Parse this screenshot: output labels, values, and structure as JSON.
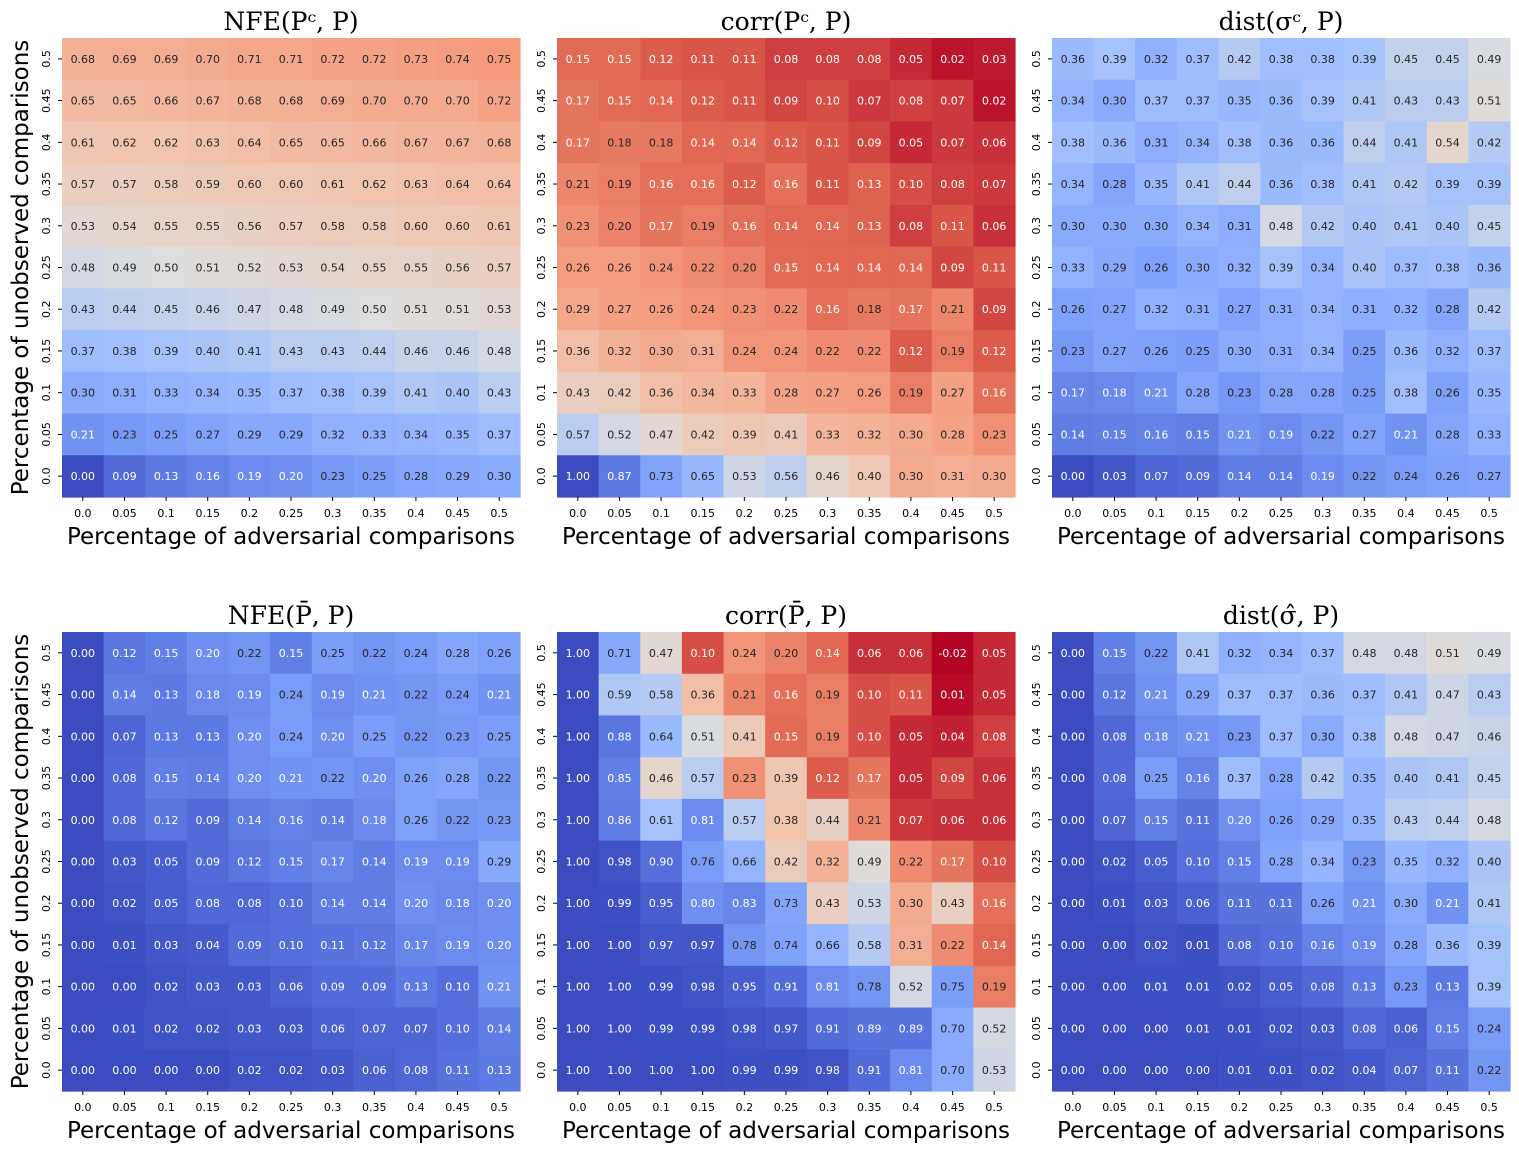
{
  "chart_data": [
    {
      "type": "heatmap",
      "title": "NFE(Pᶜ, P)",
      "xlabel": "Percentage of adversarial comparisons",
      "ylabel": "Percentage of unobserved comparisons",
      "x_ticks": [
        "0.0",
        "0.05",
        "0.1",
        "0.15",
        "0.2",
        "0.25",
        "0.3",
        "0.35",
        "0.4",
        "0.45",
        "0.5"
      ],
      "y_ticks": [
        "0.5",
        "0.45",
        "0.4",
        "0.35",
        "0.3",
        "0.25",
        "0.2",
        "0.15",
        "0.1",
        "0.05",
        "0.0"
      ],
      "value_labels": [
        [
          "0.68",
          "0.69",
          "0.69",
          "0.70",
          "0.71",
          "0.71",
          "0.72",
          "0.72",
          "0.73",
          "0.74",
          "0.75"
        ],
        [
          "0.65",
          "0.65",
          "0.66",
          "0.67",
          "0.68",
          "0.68",
          "0.69",
          "0.70",
          "0.70",
          "0.70",
          "0.72"
        ],
        [
          "0.61",
          "0.62",
          "0.62",
          "0.63",
          "0.64",
          "0.65",
          "0.65",
          "0.66",
          "0.67",
          "0.67",
          "0.68"
        ],
        [
          "0.57",
          "0.57",
          "0.58",
          "0.59",
          "0.60",
          "0.60",
          "0.61",
          "0.62",
          "0.63",
          "0.64",
          "0.64"
        ],
        [
          "0.53",
          "0.54",
          "0.55",
          "0.55",
          "0.56",
          "0.57",
          "0.58",
          "0.58",
          "0.60",
          "0.60",
          "0.61"
        ],
        [
          "0.48",
          "0.49",
          "0.50",
          "0.51",
          "0.52",
          "0.53",
          "0.54",
          "0.55",
          "0.55",
          "0.56",
          "0.57"
        ],
        [
          "0.43",
          "0.44",
          "0.45",
          "0.46",
          "0.47",
          "0.48",
          "0.49",
          "0.50",
          "0.51",
          "0.51",
          "0.53"
        ],
        [
          "0.37",
          "0.38",
          "0.39",
          "0.40",
          "0.41",
          "0.43",
          "0.43",
          "0.44",
          "0.46",
          "0.46",
          "0.48"
        ],
        [
          "0.30",
          "0.31",
          "0.33",
          "0.34",
          "0.35",
          "0.37",
          "0.38",
          "0.39",
          "0.41",
          "0.40",
          "0.43"
        ],
        [
          "0.21",
          "0.23",
          "0.25",
          "0.27",
          "0.29",
          "0.29",
          "0.32",
          "0.33",
          "0.34",
          "0.35",
          "0.37"
        ],
        [
          "0.00",
          "0.09",
          "0.13",
          "0.16",
          "0.19",
          "0.20",
          "0.23",
          "0.25",
          "0.28",
          "0.29",
          "0.30"
        ]
      ],
      "color_range": [
        0.0,
        1.0
      ],
      "colormap": "coolwarm"
    },
    {
      "type": "heatmap",
      "title": "corr(Pᶜ, P)",
      "xlabel": "Percentage of adversarial comparisons",
      "ylabel": "",
      "x_ticks": [
        "0.0",
        "0.05",
        "0.1",
        "0.15",
        "0.2",
        "0.25",
        "0.3",
        "0.35",
        "0.4",
        "0.45",
        "0.5"
      ],
      "y_ticks": [
        "0.5",
        "0.45",
        "0.4",
        "0.35",
        "0.3",
        "0.25",
        "0.2",
        "0.15",
        "0.1",
        "0.05",
        "0.0"
      ],
      "value_labels": [
        [
          "0.15",
          "0.15",
          "0.12",
          "0.11",
          "0.11",
          "0.08",
          "0.08",
          "0.08",
          "0.05",
          "0.02",
          "0.03"
        ],
        [
          "0.17",
          "0.15",
          "0.14",
          "0.12",
          "0.11",
          "0.09",
          "0.10",
          "0.07",
          "0.08",
          "0.07",
          "0.02"
        ],
        [
          "0.17",
          "0.18",
          "0.18",
          "0.14",
          "0.14",
          "0.12",
          "0.11",
          "0.09",
          "0.05",
          "0.07",
          "0.06"
        ],
        [
          "0.21",
          "0.19",
          "0.16",
          "0.16",
          "0.12",
          "0.16",
          "0.11",
          "0.13",
          "0.10",
          "0.08",
          "0.07"
        ],
        [
          "0.23",
          "0.20",
          "0.17",
          "0.19",
          "0.16",
          "0.14",
          "0.14",
          "0.13",
          "0.08",
          "0.11",
          "0.06"
        ],
        [
          "0.26",
          "0.26",
          "0.24",
          "0.22",
          "0.20",
          "0.15",
          "0.14",
          "0.14",
          "0.14",
          "0.09",
          "0.11"
        ],
        [
          "0.29",
          "0.27",
          "0.26",
          "0.24",
          "0.23",
          "0.22",
          "0.16",
          "0.18",
          "0.17",
          "0.21",
          "0.09"
        ],
        [
          "0.36",
          "0.32",
          "0.30",
          "0.31",
          "0.24",
          "0.24",
          "0.22",
          "0.22",
          "0.12",
          "0.19",
          "0.12"
        ],
        [
          "0.43",
          "0.42",
          "0.36",
          "0.34",
          "0.33",
          "0.28",
          "0.27",
          "0.26",
          "0.19",
          "0.27",
          "0.16"
        ],
        [
          "0.57",
          "0.52",
          "0.47",
          "0.42",
          "0.39",
          "0.41",
          "0.33",
          "0.32",
          "0.30",
          "0.28",
          "0.23"
        ],
        [
          "1.00",
          "0.87",
          "0.73",
          "0.65",
          "0.53",
          "0.56",
          "0.46",
          "0.40",
          "0.30",
          "0.31",
          "0.30"
        ]
      ],
      "color_range": [
        1.0,
        0.0
      ],
      "colormap": "coolwarm_reversed"
    },
    {
      "type": "heatmap",
      "title": "dist(σᶜ, P)",
      "xlabel": "Percentage of adversarial comparisons",
      "ylabel": "",
      "x_ticks": [
        "0.0",
        "0.05",
        "0.1",
        "0.15",
        "0.2",
        "0.25",
        "0.3",
        "0.35",
        "0.4",
        "0.45",
        "0.5"
      ],
      "y_ticks": [
        "0.5",
        "0.45",
        "0.4",
        "0.35",
        "0.3",
        "0.25",
        "0.2",
        "0.15",
        "0.1",
        "0.05",
        "0.0"
      ],
      "value_labels": [
        [
          "0.36",
          "0.39",
          "0.32",
          "0.37",
          "0.42",
          "0.38",
          "0.38",
          "0.39",
          "0.45",
          "0.45",
          "0.49"
        ],
        [
          "0.34",
          "0.30",
          "0.37",
          "0.37",
          "0.35",
          "0.36",
          "0.39",
          "0.41",
          "0.43",
          "0.43",
          "0.51"
        ],
        [
          "0.38",
          "0.36",
          "0.31",
          "0.34",
          "0.38",
          "0.36",
          "0.36",
          "0.44",
          "0.41",
          "0.54",
          "0.42"
        ],
        [
          "0.34",
          "0.28",
          "0.35",
          "0.41",
          "0.44",
          "0.36",
          "0.38",
          "0.41",
          "0.42",
          "0.39",
          "0.39"
        ],
        [
          "0.30",
          "0.30",
          "0.30",
          "0.34",
          "0.31",
          "0.48",
          "0.42",
          "0.40",
          "0.41",
          "0.40",
          "0.45"
        ],
        [
          "0.33",
          "0.29",
          "0.26",
          "0.30",
          "0.32",
          "0.39",
          "0.34",
          "0.40",
          "0.37",
          "0.38",
          "0.36"
        ],
        [
          "0.26",
          "0.27",
          "0.32",
          "0.31",
          "0.27",
          "0.31",
          "0.34",
          "0.31",
          "0.32",
          "0.28",
          "0.42"
        ],
        [
          "0.23",
          "0.27",
          "0.26",
          "0.25",
          "0.30",
          "0.31",
          "0.34",
          "0.25",
          "0.36",
          "0.32",
          "0.37"
        ],
        [
          "0.17",
          "0.18",
          "0.21",
          "0.28",
          "0.23",
          "0.28",
          "0.28",
          "0.25",
          "0.38",
          "0.26",
          "0.35"
        ],
        [
          "0.14",
          "0.15",
          "0.16",
          "0.15",
          "0.21",
          "0.19",
          "0.22",
          "0.27",
          "0.21",
          "0.28",
          "0.33"
        ],
        [
          "0.00",
          "0.03",
          "0.07",
          "0.09",
          "0.14",
          "0.14",
          "0.19",
          "0.22",
          "0.24",
          "0.26",
          "0.27"
        ]
      ],
      "color_range": [
        0.0,
        1.0
      ],
      "colormap": "coolwarm"
    },
    {
      "type": "heatmap",
      "title": "NFE(P̄, P)",
      "xlabel": "Percentage of adversarial comparisons",
      "ylabel": "Percentage of unobserved comparisons",
      "x_ticks": [
        "0.0",
        "0.05",
        "0.1",
        "0.15",
        "0.2",
        "0.25",
        "0.3",
        "0.35",
        "0.4",
        "0.45",
        "0.5"
      ],
      "y_ticks": [
        "0.5",
        "0.45",
        "0.4",
        "0.35",
        "0.3",
        "0.25",
        "0.2",
        "0.15",
        "0.1",
        "0.05",
        "0.0"
      ],
      "value_labels": [
        [
          "0.00",
          "0.12",
          "0.15",
          "0.20",
          "0.22",
          "0.15",
          "0.25",
          "0.22",
          "0.24",
          "0.28",
          "0.26"
        ],
        [
          "0.00",
          "0.14",
          "0.13",
          "0.18",
          "0.19",
          "0.24",
          "0.19",
          "0.21",
          "0.22",
          "0.24",
          "0.21"
        ],
        [
          "0.00",
          "0.07",
          "0.13",
          "0.13",
          "0.20",
          "0.24",
          "0.20",
          "0.25",
          "0.22",
          "0.23",
          "0.25"
        ],
        [
          "0.00",
          "0.08",
          "0.15",
          "0.14",
          "0.20",
          "0.21",
          "0.22",
          "0.20",
          "0.26",
          "0.28",
          "0.22"
        ],
        [
          "0.00",
          "0.08",
          "0.12",
          "0.09",
          "0.14",
          "0.16",
          "0.14",
          "0.18",
          "0.26",
          "0.22",
          "0.23"
        ],
        [
          "0.00",
          "0.03",
          "0.05",
          "0.09",
          "0.12",
          "0.15",
          "0.17",
          "0.14",
          "0.19",
          "0.19",
          "0.29"
        ],
        [
          "0.00",
          "0.02",
          "0.05",
          "0.08",
          "0.08",
          "0.10",
          "0.14",
          "0.14",
          "0.20",
          "0.18",
          "0.20"
        ],
        [
          "0.00",
          "0.01",
          "0.03",
          "0.04",
          "0.09",
          "0.10",
          "0.11",
          "0.12",
          "0.17",
          "0.19",
          "0.20"
        ],
        [
          "0.00",
          "0.00",
          "0.02",
          "0.03",
          "0.03",
          "0.06",
          "0.09",
          "0.09",
          "0.13",
          "0.10",
          "0.21"
        ],
        [
          "0.00",
          "0.01",
          "0.02",
          "0.02",
          "0.03",
          "0.03",
          "0.06",
          "0.07",
          "0.07",
          "0.10",
          "0.14"
        ],
        [
          "0.00",
          "0.00",
          "0.00",
          "0.00",
          "0.02",
          "0.02",
          "0.03",
          "0.06",
          "0.08",
          "0.11",
          "0.13"
        ]
      ],
      "color_range": [
        0.0,
        1.0
      ],
      "colormap": "coolwarm"
    },
    {
      "type": "heatmap",
      "title": "corr(P̄, P)",
      "xlabel": "Percentage of adversarial comparisons",
      "ylabel": "",
      "x_ticks": [
        "0.0",
        "0.05",
        "0.1",
        "0.15",
        "0.2",
        "0.25",
        "0.3",
        "0.35",
        "0.4",
        "0.45",
        "0.5"
      ],
      "y_ticks": [
        "0.5",
        "0.45",
        "0.4",
        "0.35",
        "0.3",
        "0.25",
        "0.2",
        "0.15",
        "0.1",
        "0.05",
        "0.0"
      ],
      "value_labels": [
        [
          "1.00",
          "0.71",
          "0.47",
          "0.10",
          "0.24",
          "0.20",
          "0.14",
          "0.06",
          "0.06",
          "-0.02",
          "0.05"
        ],
        [
          "1.00",
          "0.59",
          "0.58",
          "0.36",
          "0.21",
          "0.16",
          "0.19",
          "0.10",
          "0.11",
          "0.01",
          "0.05"
        ],
        [
          "1.00",
          "0.88",
          "0.64",
          "0.51",
          "0.41",
          "0.15",
          "0.19",
          "0.10",
          "0.05",
          "0.04",
          "0.08"
        ],
        [
          "1.00",
          "0.85",
          "0.46",
          "0.57",
          "0.23",
          "0.39",
          "0.12",
          "0.17",
          "0.05",
          "0.09",
          "0.06"
        ],
        [
          "1.00",
          "0.86",
          "0.61",
          "0.81",
          "0.57",
          "0.38",
          "0.44",
          "0.21",
          "0.07",
          "0.06",
          "0.06"
        ],
        [
          "1.00",
          "0.98",
          "0.90",
          "0.76",
          "0.66",
          "0.42",
          "0.32",
          "0.49",
          "0.22",
          "0.17",
          "0.10"
        ],
        [
          "1.00",
          "0.99",
          "0.95",
          "0.80",
          "0.83",
          "0.73",
          "0.43",
          "0.53",
          "0.30",
          "0.43",
          "0.16"
        ],
        [
          "1.00",
          "1.00",
          "0.97",
          "0.97",
          "0.78",
          "0.74",
          "0.66",
          "0.58",
          "0.31",
          "0.22",
          "0.14"
        ],
        [
          "1.00",
          "1.00",
          "0.99",
          "0.98",
          "0.95",
          "0.91",
          "0.81",
          "0.78",
          "0.52",
          "0.75",
          "0.19"
        ],
        [
          "1.00",
          "1.00",
          "0.99",
          "0.99",
          "0.98",
          "0.97",
          "0.91",
          "0.89",
          "0.89",
          "0.70",
          "0.52"
        ],
        [
          "1.00",
          "1.00",
          "1.00",
          "1.00",
          "0.99",
          "0.99",
          "0.98",
          "0.91",
          "0.81",
          "0.70",
          "0.53"
        ]
      ],
      "color_range": [
        1.0,
        0.0
      ],
      "colormap": "coolwarm_reversed"
    },
    {
      "type": "heatmap",
      "title": "dist(σ̂, P)",
      "xlabel": "Percentage of adversarial comparisons",
      "ylabel": "",
      "x_ticks": [
        "0.0",
        "0.05",
        "0.1",
        "0.15",
        "0.2",
        "0.25",
        "0.3",
        "0.35",
        "0.4",
        "0.45",
        "0.5"
      ],
      "y_ticks": [
        "0.5",
        "0.45",
        "0.4",
        "0.35",
        "0.3",
        "0.25",
        "0.2",
        "0.15",
        "0.1",
        "0.05",
        "0.0"
      ],
      "value_labels": [
        [
          "0.00",
          "0.15",
          "0.22",
          "0.41",
          "0.32",
          "0.34",
          "0.37",
          "0.48",
          "0.48",
          "0.51",
          "0.49"
        ],
        [
          "0.00",
          "0.12",
          "0.21",
          "0.29",
          "0.37",
          "0.37",
          "0.36",
          "0.37",
          "0.41",
          "0.47",
          "0.43"
        ],
        [
          "0.00",
          "0.08",
          "0.18",
          "0.21",
          "0.23",
          "0.37",
          "0.30",
          "0.38",
          "0.48",
          "0.47",
          "0.46"
        ],
        [
          "0.00",
          "0.08",
          "0.25",
          "0.16",
          "0.37",
          "0.28",
          "0.42",
          "0.35",
          "0.40",
          "0.41",
          "0.45"
        ],
        [
          "0.00",
          "0.07",
          "0.15",
          "0.11",
          "0.20",
          "0.26",
          "0.29",
          "0.35",
          "0.43",
          "0.44",
          "0.48"
        ],
        [
          "0.00",
          "0.02",
          "0.05",
          "0.10",
          "0.15",
          "0.28",
          "0.34",
          "0.23",
          "0.35",
          "0.32",
          "0.40"
        ],
        [
          "0.00",
          "0.01",
          "0.03",
          "0.06",
          "0.11",
          "0.11",
          "0.26",
          "0.21",
          "0.30",
          "0.21",
          "0.41"
        ],
        [
          "0.00",
          "0.00",
          "0.02",
          "0.01",
          "0.08",
          "0.10",
          "0.16",
          "0.19",
          "0.28",
          "0.36",
          "0.39"
        ],
        [
          "0.00",
          "0.00",
          "0.01",
          "0.01",
          "0.02",
          "0.05",
          "0.08",
          "0.13",
          "0.23",
          "0.13",
          "0.39"
        ],
        [
          "0.00",
          "0.00",
          "0.00",
          "0.01",
          "0.01",
          "0.02",
          "0.03",
          "0.08",
          "0.06",
          "0.15",
          "0.24"
        ],
        [
          "0.00",
          "0.00",
          "0.00",
          "0.00",
          "0.01",
          "0.01",
          "0.02",
          "0.04",
          "0.07",
          "0.11",
          "0.22"
        ]
      ],
      "color_range": [
        0.0,
        1.0
      ],
      "colormap": "coolwarm"
    }
  ]
}
